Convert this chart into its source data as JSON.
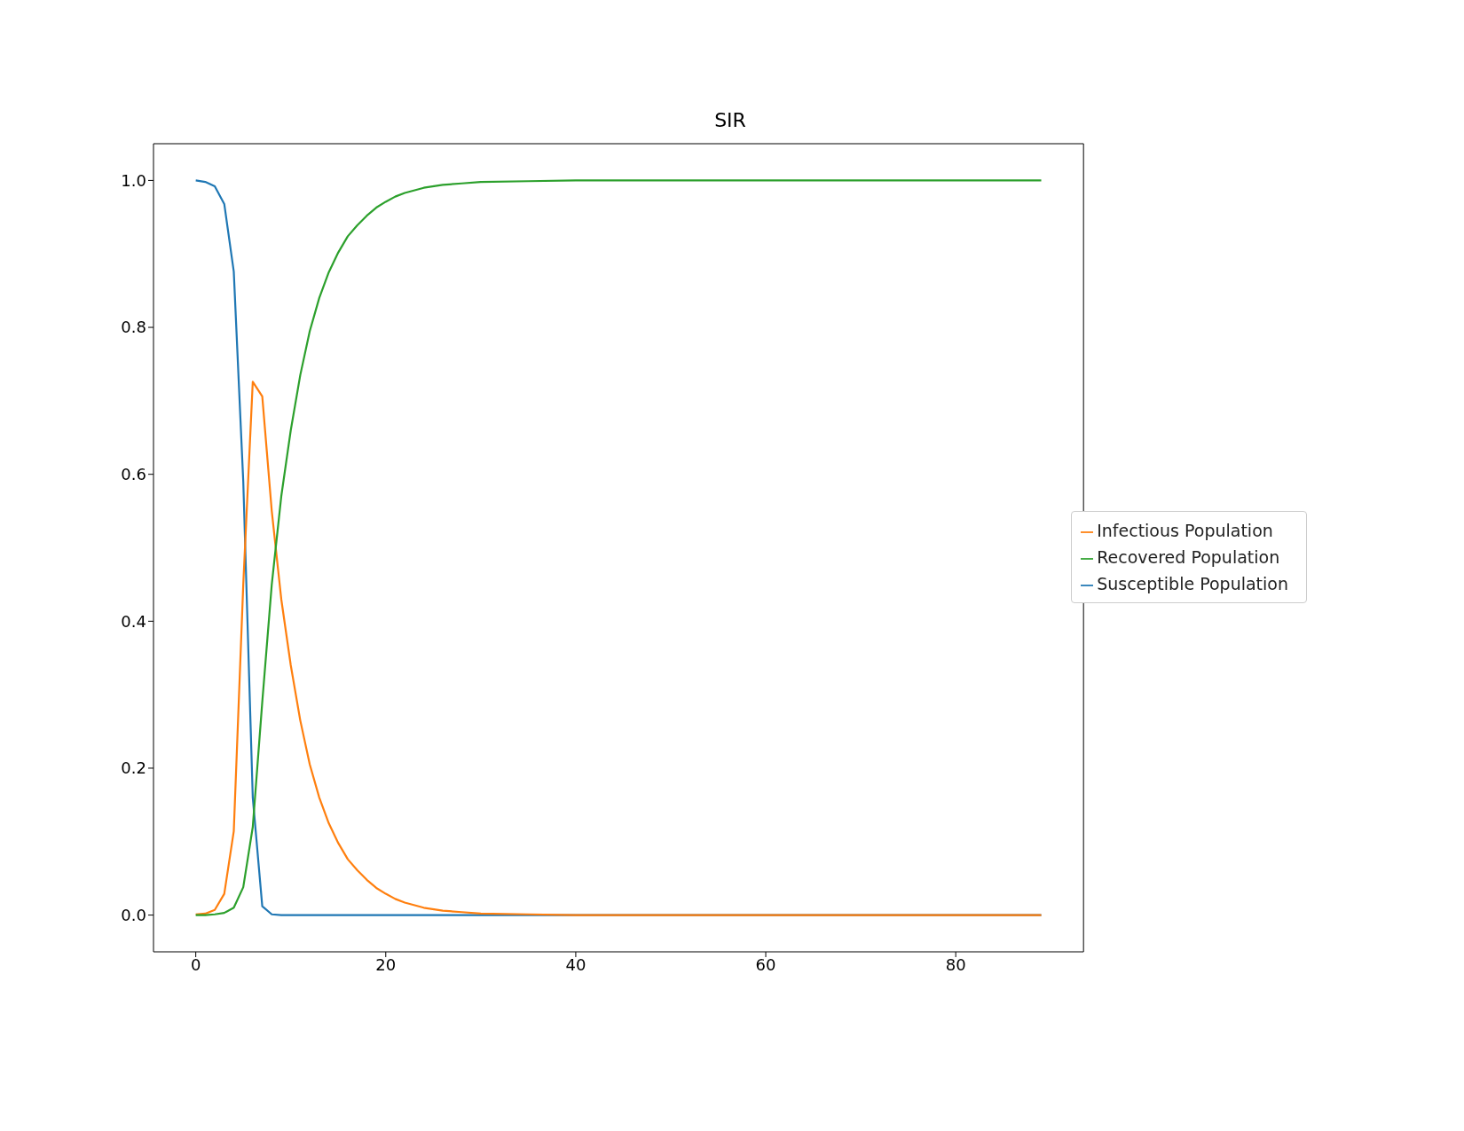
{
  "chart_data": {
    "type": "line",
    "title": "SIR",
    "xlim": [
      -4.45,
      93.45
    ],
    "xticks": [
      0,
      20,
      40,
      60,
      80
    ],
    "ylim": [
      -0.05,
      1.05
    ],
    "yticks": [
      {
        "value": 0,
        "label": "0.0"
      },
      {
        "value": 0.2,
        "label": "0.2"
      },
      {
        "value": 0.4,
        "label": "0.4"
      },
      {
        "value": 0.6,
        "label": "0.6"
      },
      {
        "value": 0.8,
        "label": "0.8"
      },
      {
        "value": 1,
        "label": "1.0"
      }
    ],
    "grid": false,
    "legend": "right",
    "marker": "none",
    "line_style": "solid",
    "series": [
      {
        "name": "Susceptible Population",
        "color": "#1f77b4",
        "x": [
          0,
          1,
          2,
          3,
          4,
          5,
          6,
          7,
          8,
          9,
          89
        ],
        "values": [
          1.0,
          0.998,
          0.992,
          0.968,
          0.876,
          0.59,
          0.16,
          0.012,
          0.001,
          0,
          0
        ]
      },
      {
        "name": "Infectious Population",
        "color": "#ff7f0e",
        "x": [
          0,
          1,
          2,
          3,
          4,
          5,
          6,
          7,
          8,
          9,
          10,
          11,
          12,
          13,
          14,
          15,
          16,
          17,
          18,
          19,
          20,
          21,
          22,
          24,
          26,
          28,
          30,
          35,
          40,
          89
        ],
        "values": [
          0.001,
          0.002,
          0.007,
          0.029,
          0.114,
          0.45,
          0.726,
          0.706,
          0.55,
          0.43,
          0.34,
          0.265,
          0.205,
          0.16,
          0.125,
          0.098,
          0.076,
          0.061,
          0.048,
          0.037,
          0.029,
          0.022,
          0.017,
          0.01,
          0.006,
          0.004,
          0.002,
          0.001,
          0,
          0
        ]
      },
      {
        "name": "Recovered Population",
        "color": "#2ca02c",
        "x": [
          0,
          1,
          2,
          3,
          4,
          5,
          6,
          7,
          8,
          9,
          10,
          11,
          12,
          13,
          14,
          15,
          16,
          17,
          18,
          19,
          20,
          21,
          22,
          24,
          26,
          28,
          30,
          35,
          40,
          89
        ],
        "values": [
          0,
          0,
          0.001,
          0.003,
          0.01,
          0.038,
          0.12,
          0.29,
          0.45,
          0.57,
          0.66,
          0.735,
          0.795,
          0.84,
          0.875,
          0.902,
          0.924,
          0.939,
          0.952,
          0.963,
          0.971,
          0.978,
          0.983,
          0.99,
          0.994,
          0.996,
          0.998,
          0.999,
          1,
          1
        ]
      }
    ]
  }
}
